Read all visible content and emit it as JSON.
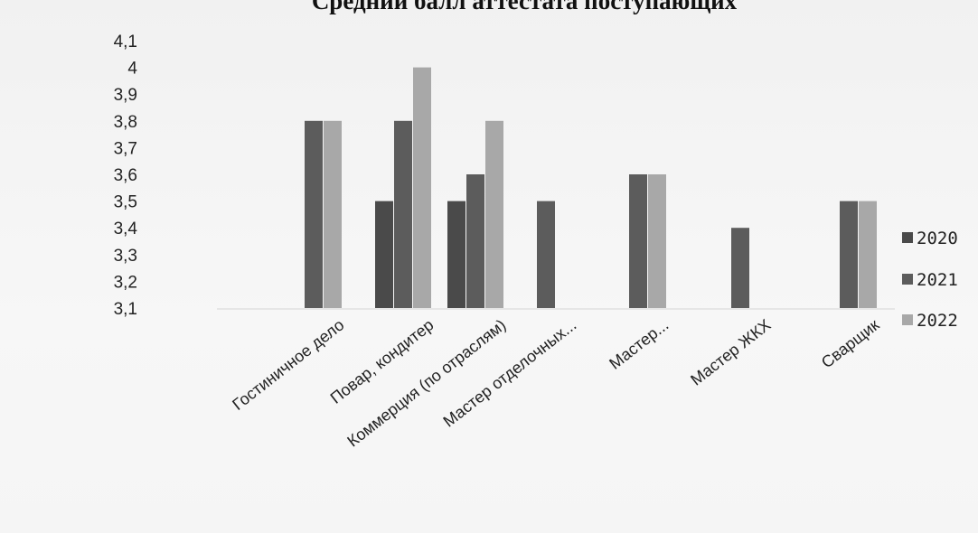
{
  "chart_data": {
    "type": "bar",
    "title": "Средний балл аттестата поступающих",
    "xlabel": "",
    "ylabel": "",
    "ylim": [
      3.1,
      4.1
    ],
    "yticks": [
      "4,1",
      "4",
      "3,9",
      "3,8",
      "3,7",
      "3,6",
      "3,5",
      "3,4",
      "3,3",
      "3,2",
      "3,1"
    ],
    "ytick_values": [
      4.1,
      4.0,
      3.9,
      3.8,
      3.7,
      3.6,
      3.5,
      3.4,
      3.3,
      3.2,
      3.1
    ],
    "categories": [
      "Гостиничное дело",
      "Повар, кондитер",
      "Коммерция (по отраслям)",
      "Мастер отделочных...",
      "Мастер...",
      "Мастер ЖКХ",
      "Сварщик"
    ],
    "series": [
      {
        "name": "2020",
        "color": "#4a4a4a",
        "values": [
          null,
          3.5,
          3.5,
          null,
          null,
          null,
          null
        ]
      },
      {
        "name": "2021",
        "color": "#5c5c5c",
        "values": [
          3.8,
          3.8,
          3.6,
          3.5,
          3.6,
          3.4,
          3.5
        ]
      },
      {
        "name": "2022",
        "color": "#a8a8a8",
        "values": [
          3.8,
          4.0,
          3.8,
          null,
          3.6,
          null,
          3.5
        ]
      }
    ],
    "legend_position": "right",
    "grid": false
  }
}
